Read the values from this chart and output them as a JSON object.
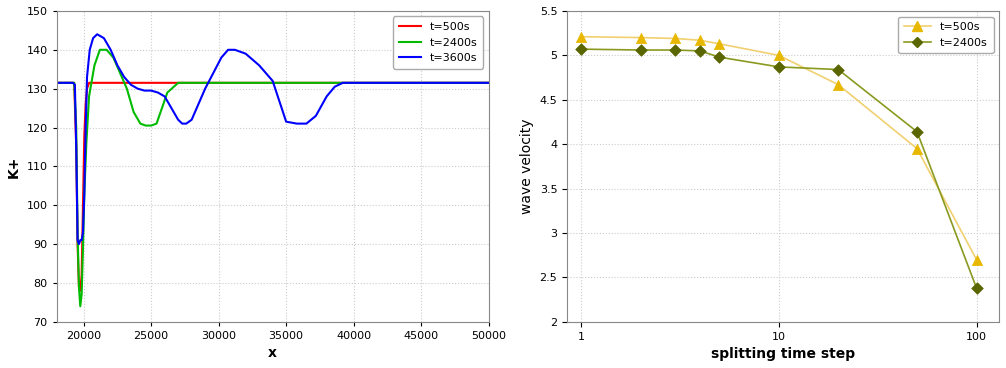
{
  "left": {
    "ylabel": "K+",
    "xlabel": "x",
    "xlim": [
      18000,
      50000
    ],
    "ylim": [
      70,
      150
    ],
    "yticks": [
      70,
      80,
      90,
      100,
      110,
      120,
      130,
      140,
      150
    ],
    "xticks": [
      20000,
      25000,
      30000,
      35000,
      40000,
      45000,
      50000
    ],
    "xtick_labels": [
      "20000",
      "25000",
      "30000",
      "35000",
      "40000",
      "45000",
      "50000"
    ],
    "grid_color": "#cccccc",
    "bg_color": "#ffffff",
    "lines": [
      {
        "label": "t=500s",
        "color": "#ff0000",
        "x": [
          18000,
          18500,
          19000,
          19300,
          19450,
          19550,
          19650,
          19750,
          19850,
          19950,
          20050,
          20150,
          20250,
          20400,
          20600,
          20900,
          21400,
          22000,
          25000,
          30000,
          35000,
          40000,
          45000,
          50000
        ],
        "y": [
          131.5,
          131.5,
          131.5,
          131.5,
          115,
          90,
          79,
          78,
          82,
          100,
          118,
          126,
          130,
          131.5,
          131.5,
          131.5,
          131.5,
          131.5,
          131.5,
          131.5,
          131.5,
          131.5,
          131.5,
          131.5
        ]
      },
      {
        "label": "t=2400s",
        "color": "#00bb00",
        "x": [
          18000,
          18500,
          19000,
          19300,
          19450,
          19550,
          19650,
          19750,
          19850,
          19950,
          20050,
          20200,
          20400,
          20800,
          21200,
          21700,
          22200,
          22700,
          23200,
          23700,
          24200,
          24600,
          25000,
          25400,
          25800,
          26200,
          27000,
          28000,
          29000,
          30000,
          32000,
          35000,
          40000,
          45000,
          50000
        ],
        "y": [
          131.5,
          131.5,
          131.5,
          131.5,
          120,
          93,
          79,
          74,
          77,
          89,
          103,
          116,
          128,
          136,
          140,
          140,
          138,
          134,
          130,
          124,
          121,
          120.5,
          120.5,
          121,
          125,
          129,
          131.5,
          131.5,
          131.5,
          131.5,
          131.5,
          131.5,
          131.5,
          131.5,
          131.5
        ]
      },
      {
        "label": "t=3600s",
        "color": "#0000ff",
        "x": [
          18000,
          18500,
          19000,
          19200,
          19350,
          19450,
          19550,
          19650,
          19750,
          19850,
          19950,
          20050,
          20150,
          20250,
          20450,
          20700,
          21000,
          21500,
          22000,
          22500,
          23000,
          23500,
          24000,
          24500,
          25000,
          25500,
          26000,
          26500,
          27000,
          27300,
          27600,
          28000,
          28500,
          29000,
          29600,
          30200,
          30700,
          31200,
          32000,
          33000,
          34000,
          35000,
          35800,
          36500,
          37200,
          38000,
          38600,
          39200,
          40000,
          45000,
          50000
        ],
        "y": [
          131.5,
          131.5,
          131.5,
          131.5,
          131,
          115,
          91,
          90,
          91,
          91,
          93,
          103,
          120,
          133,
          140,
          143,
          144,
          143,
          140,
          136,
          133,
          131,
          130,
          129.5,
          129.5,
          129,
          128,
          125,
          122,
          121,
          121,
          122,
          126,
          130,
          134,
          138,
          140,
          140,
          139,
          136,
          132,
          121.5,
          121,
          121,
          123,
          128,
          130.5,
          131.5,
          131.5,
          131.5,
          131.5
        ]
      }
    ]
  },
  "right": {
    "ylabel": "wave velocity",
    "xlabel": "splitting time step",
    "ylim": [
      2,
      5.5
    ],
    "yticks": [
      2,
      2.5,
      3,
      3.5,
      4,
      4.5,
      5,
      5.5
    ],
    "bg_color": "#ffffff",
    "grid_color": "#cccccc",
    "t500s": {
      "label": "t=500s",
      "color": "#e8b800",
      "line_color": "#f0d070",
      "marker": "^",
      "x": [
        1,
        2,
        3,
        4,
        5,
        10,
        20,
        50,
        100
      ],
      "y": [
        5.21,
        5.2,
        5.19,
        5.17,
        5.13,
        5.0,
        4.67,
        3.95,
        2.7
      ]
    },
    "t2400s": {
      "label": "t=2400s",
      "color": "#5a6600",
      "line_color": "#8a9a20",
      "marker": "D",
      "x": [
        1,
        2,
        3,
        4,
        5,
        10,
        20,
        50,
        100
      ],
      "y": [
        5.07,
        5.06,
        5.06,
        5.05,
        4.98,
        4.87,
        4.84,
        4.14,
        2.38
      ]
    }
  }
}
